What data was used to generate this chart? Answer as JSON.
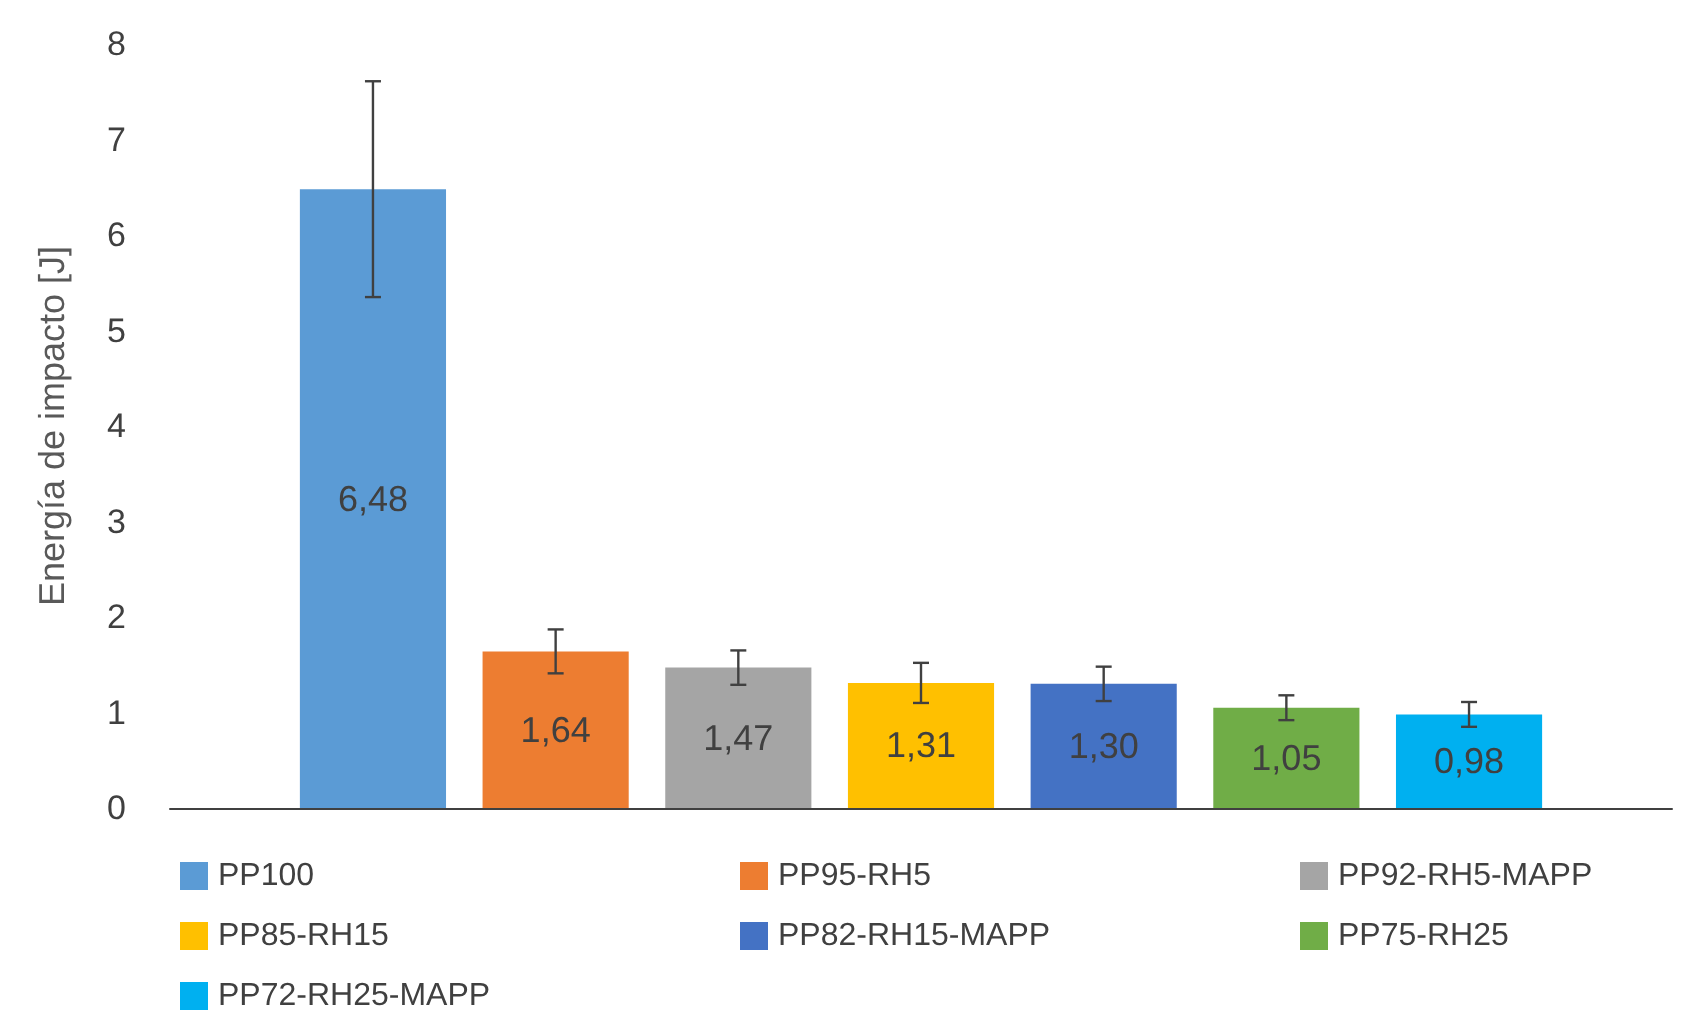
{
  "chart_data": {
    "type": "bar",
    "ylabel": "Energía de impacto [J]",
    "categories": [
      null
    ],
    "ylim": [
      0,
      8
    ],
    "yticks": [
      0,
      1,
      2,
      3,
      4,
      5,
      6,
      7,
      8
    ],
    "grid": false,
    "legend": "bottom",
    "series": [
      {
        "name": "PP100",
        "color": "#5b9bd5",
        "values": [
          6.48
        ],
        "errors": [
          1.13
        ],
        "value_labels": [
          "6,48"
        ]
      },
      {
        "name": "PP95-RH5",
        "color": "#ed7d31",
        "values": [
          1.64
        ],
        "errors": [
          0.23
        ],
        "value_labels": [
          "1,64"
        ]
      },
      {
        "name": "PP92-RH5-MAPP",
        "color": "#a5a5a5",
        "values": [
          1.47
        ],
        "errors": [
          0.18
        ],
        "value_labels": [
          "1,47"
        ]
      },
      {
        "name": "PP85-RH15",
        "color": "#ffc000",
        "values": [
          1.31
        ],
        "errors": [
          0.21
        ],
        "value_labels": [
          "1,31"
        ]
      },
      {
        "name": "PP82-RH15-MAPP",
        "color": "#4472c4",
        "values": [
          1.3
        ],
        "errors": [
          0.18
        ],
        "value_labels": [
          "1,30"
        ]
      },
      {
        "name": "PP75-RH25",
        "color": "#70ad47",
        "values": [
          1.05
        ],
        "errors": [
          0.13
        ],
        "value_labels": [
          "1,05"
        ]
      },
      {
        "name": "PP72-RH25-MAPP",
        "color": "#00b0f0",
        "values": [
          0.98
        ],
        "errors": [
          0.13
        ],
        "value_labels": [
          "0,98"
        ]
      }
    ]
  }
}
